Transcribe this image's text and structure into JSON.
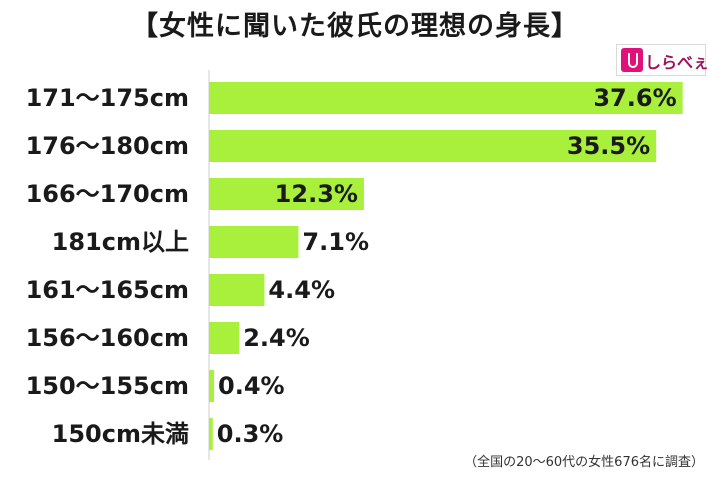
{
  "title": "【女性に聞いた彼氏の理想の身長】",
  "logo_text": "しらべぇ",
  "footnote": "（全国の20～60代の女性676名に調査）",
  "colors": {
    "bar": "#a8f03c",
    "axis": "#cccccc",
    "text": "#1a1a1a"
  },
  "chart_data": {
    "type": "bar",
    "orientation": "horizontal",
    "title": "【女性に聞いた彼氏の理想の身長】",
    "categories": [
      "171～175cm",
      "176～180cm",
      "166～170cm",
      "181cm以上",
      "161～165cm",
      "156～160cm",
      "150～155cm",
      "150cm未満"
    ],
    "values": [
      37.6,
      35.5,
      12.3,
      7.1,
      4.4,
      2.4,
      0.4,
      0.3
    ],
    "value_labels": [
      "37.6%",
      "35.5%",
      "12.3%",
      "7.1%",
      "4.4%",
      "2.4%",
      "0.4%",
      "0.3%"
    ],
    "unit": "%",
    "xlim": [
      0,
      40
    ],
    "grid": false,
    "legend": "none"
  }
}
